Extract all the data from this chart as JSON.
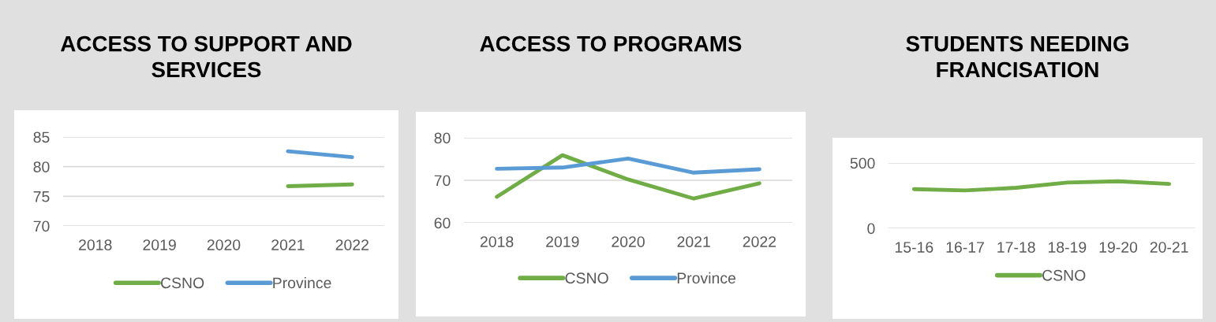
{
  "chart_data": [
    {
      "type": "line",
      "title": "ACCESS TO SUPPORT AND SERVICES",
      "categories": [
        "2018",
        "2019",
        "2020",
        "2021",
        "2022"
      ],
      "series": [
        {
          "name": "CSNO",
          "color": "#70ad47",
          "values": [
            null,
            null,
            null,
            76.7,
            77.0
          ]
        },
        {
          "name": "Province",
          "color": "#5b9bd5",
          "values": [
            null,
            null,
            null,
            82.6,
            81.6
          ]
        }
      ],
      "ylim": [
        70,
        85
      ],
      "yticks": [
        70,
        75,
        80,
        85
      ],
      "grid": "y",
      "legend": "bottom"
    },
    {
      "type": "line",
      "title": "ACCESS TO PROGRAMS",
      "categories": [
        "2018",
        "2019",
        "2020",
        "2021",
        "2022"
      ],
      "series": [
        {
          "name": "CSNO",
          "color": "#70ad47",
          "values": [
            66.1,
            75.9,
            70.2,
            65.7,
            69.3
          ]
        },
        {
          "name": "Province",
          "color": "#5b9bd5",
          "values": [
            72.7,
            73.0,
            75.1,
            71.8,
            72.6
          ]
        }
      ],
      "ylim": [
        60,
        80
      ],
      "yticks": [
        60,
        70,
        80
      ],
      "grid": "y",
      "legend": "bottom"
    },
    {
      "type": "line",
      "title": "STUDENTS NEEDING FRANCISATION",
      "categories": [
        "15-16",
        "16-17",
        "17-18",
        "18-19",
        "19-20",
        "20-21"
      ],
      "series": [
        {
          "name": "CSNO",
          "color": "#70ad47",
          "values": [
            300,
            290,
            310,
            350,
            360,
            340
          ]
        }
      ],
      "ylim": [
        0,
        500
      ],
      "yticks": [
        0,
        500
      ],
      "grid": "y",
      "legend": "bottom"
    }
  ]
}
